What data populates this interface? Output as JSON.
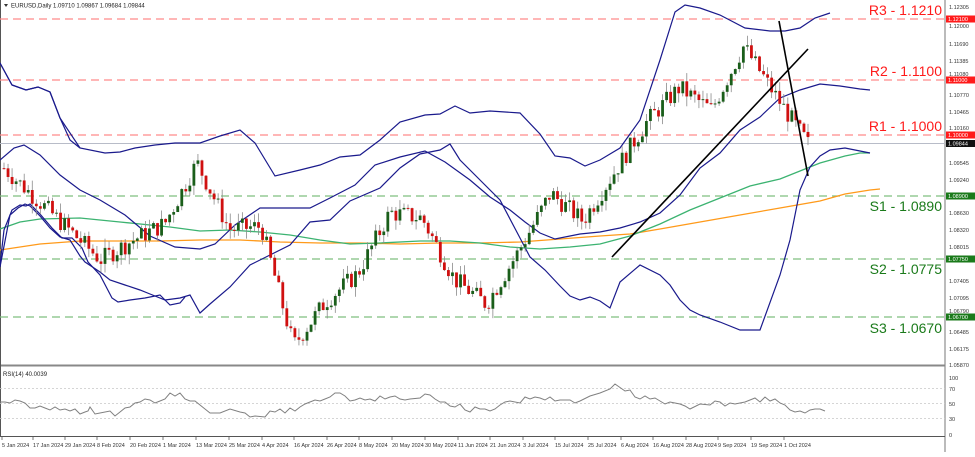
{
  "header": {
    "symbol": "EURUSD,Daily",
    "ohlc": "1.09710 1.09867 1.09684 1.09844",
    "collapse_icon": "triangle-down-icon"
  },
  "price_axis": {
    "ticks": [
      "1.12305",
      "1.12000",
      "1.11690",
      "1.11385",
      "1.11080",
      "1.10770",
      "1.10465",
      "1.10160",
      "1.09545",
      "1.09240",
      "1.08630",
      "1.08320",
      "1.08015",
      "1.07405",
      "1.07095",
      "1.06790",
      "1.06485",
      "1.06175",
      "1.05870"
    ],
    "current_price_tag": "1.09844"
  },
  "levels": [
    {
      "name": "R3",
      "label": "R3 - 1.1210",
      "value": 1.121,
      "tag": "1.12100",
      "color": "#ff0000"
    },
    {
      "name": "R2",
      "label": "R2 - 1.1100",
      "value": 1.11,
      "tag": "1.11000",
      "color": "#ff0000"
    },
    {
      "name": "R1",
      "label": "R1 - 1.1000",
      "value": 1.1,
      "tag": "1.10000",
      "color": "#ff0000"
    },
    {
      "name": "S1",
      "label": "S1 - 1.0890",
      "value": 1.089,
      "tag": "1.08900",
      "color": "#1a7a1a"
    },
    {
      "name": "S2",
      "label": "S2 - 1.0775",
      "value": 1.0775,
      "tag": "1.07750",
      "color": "#1a7a1a"
    },
    {
      "name": "S3",
      "label": "S3 - 1.0670",
      "value": 1.067,
      "tag": "1.06700",
      "color": "#1a7a1a"
    }
  ],
  "rsi": {
    "title": "RSI(14) 40.0039",
    "ticks": [
      "100",
      "70",
      "50",
      "30",
      "0"
    ]
  },
  "date_axis": [
    "5 Jan 2024",
    "17 Jan 2024",
    "29 Jan 2024",
    "8 Feb 2024",
    "20 Feb 2024",
    "1 Mar 2024",
    "13 Mar 2024",
    "25 Mar 2024",
    "4 Apr 2024",
    "16 Apr 2024",
    "26 Apr 2024",
    "8 May 2024",
    "20 May 2024",
    "30 May 2024",
    "11 Jun 2024",
    "21 Jun 2024",
    "3 Jul 2024",
    "15 Jul 2024",
    "25 Jul 2024",
    "6 Aug 2024",
    "16 Aug 2024",
    "28 Aug 2024",
    "9 Sep 2024",
    "19 Sep 2024",
    "1 Oct 2024"
  ],
  "colors": {
    "bull_candle": "#1a5e1a",
    "bear_candle": "#d01010",
    "wick": "#8a8a8a",
    "bollinger": "#1a1a8c",
    "ma_green": "#3cb371",
    "ma_orange": "#ff9a1a",
    "trendline": "#000000",
    "resistance": "#ff8080",
    "support": "#6db36d",
    "rsi_line": "#808080"
  },
  "chart_data": {
    "type": "candlestick",
    "title": "EURUSD,Daily",
    "instrument": "EURUSD",
    "timeframe": "Daily",
    "last_bar": {
      "open": 1.0971,
      "high": 1.09867,
      "low": 1.09684,
      "close": 1.09844
    },
    "ylim": [
      1.0587,
      1.12305
    ],
    "x_range": [
      "5 Jan 2024",
      "10 Oct 2024"
    ],
    "resistance_levels": [
      1.121,
      1.11,
      1.1
    ],
    "support_levels": [
      1.089,
      1.0775,
      1.067
    ],
    "indicators": [
      "Bollinger Bands (20)",
      "Moving Average (green, ~100)",
      "Moving Average (orange, ~200)",
      "RSI(14)"
    ],
    "rsi_value": 40.0039,
    "rsi_levels": [
      30,
      50,
      70
    ],
    "trendlines": [
      {
        "from": [
          "29 Jul 2024",
          1.078
        ],
        "to": [
          "10 Oct 2024",
          1.117
        ],
        "type": "uptrend"
      },
      {
        "from": [
          "25 Sep 2024",
          1.121
        ],
        "to": [
          "10 Oct 2024",
          1.093
        ],
        "type": "downtrend"
      }
    ],
    "approx_closes": [
      {
        "date": "5 Jan 2024",
        "close": 1.094
      },
      {
        "date": "17 Jan 2024",
        "close": 1.0885
      },
      {
        "date": "29 Jan 2024",
        "close": 1.083
      },
      {
        "date": "8 Feb 2024",
        "close": 1.0775
      },
      {
        "date": "20 Feb 2024",
        "close": 1.081
      },
      {
        "date": "1 Mar 2024",
        "close": 1.084
      },
      {
        "date": "13 Mar 2024",
        "close": 1.095
      },
      {
        "date": "25 Mar 2024",
        "close": 1.083
      },
      {
        "date": "4 Apr 2024",
        "close": 1.0835
      },
      {
        "date": "16 Apr 2024",
        "close": 1.062
      },
      {
        "date": "26 Apr 2024",
        "close": 1.07
      },
      {
        "date": "8 May 2024",
        "close": 1.075
      },
      {
        "date": "20 May 2024",
        "close": 1.086
      },
      {
        "date": "30 May 2024",
        "close": 1.085
      },
      {
        "date": "11 Jun 2024",
        "close": 1.074
      },
      {
        "date": "21 Jun 2024",
        "close": 1.0695
      },
      {
        "date": "3 Jul 2024",
        "close": 1.079
      },
      {
        "date": "15 Jul 2024",
        "close": 1.0895
      },
      {
        "date": "25 Jul 2024",
        "close": 1.0845
      },
      {
        "date": "6 Aug 2024",
        "close": 1.0935
      },
      {
        "date": "16 Aug 2024",
        "close": 1.1025
      },
      {
        "date": "28 Aug 2024",
        "close": 1.1085
      },
      {
        "date": "9 Sep 2024",
        "close": 1.1045
      },
      {
        "date": "19 Sep 2024",
        "close": 1.116
      },
      {
        "date": "1 Oct 2024",
        "close": 1.107
      },
      {
        "date": "10 Oct 2024",
        "close": 1.0984
      }
    ]
  }
}
